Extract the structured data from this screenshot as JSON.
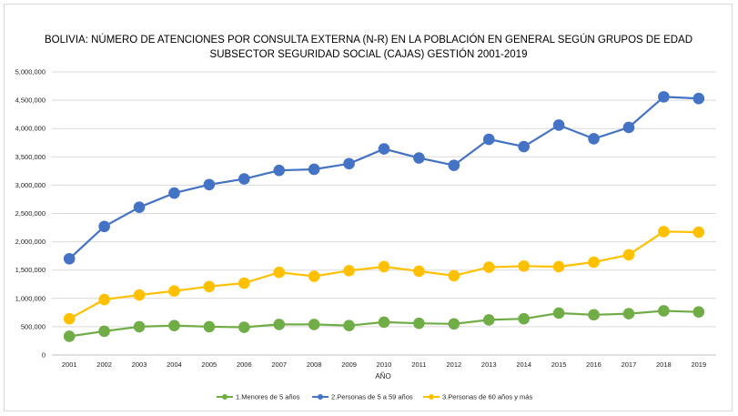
{
  "chart_data": {
    "type": "line",
    "title_line1": "BOLIVIA: NÚMERO DE ATENCIONES POR CONSULTA EXTERNA (N-R) EN LA POBLACIÓN EN GENERAL SEGÚN GRUPOS DE EDAD",
    "title_line2": "SUBSECTOR SEGURIDAD SOCIAL (CAJAS) GESTIÓN 2001-2019",
    "xlabel": "AÑO",
    "ylabel": "",
    "ylim": [
      0,
      5000000
    ],
    "yticks": [
      "0",
      "500,000",
      "1,000,000",
      "1,500,000",
      "2,000,000",
      "2,500,000",
      "3,000,000",
      "3,500,000",
      "4,000,000",
      "4,500,000",
      "5,000,000"
    ],
    "grid": true,
    "legend_position": "bottom",
    "categories": [
      "2001",
      "2002",
      "2003",
      "2004",
      "2005",
      "2006",
      "2007",
      "2008",
      "2009",
      "2010",
      "2011",
      "2012",
      "2013",
      "2014",
      "2015",
      "2016",
      "2017",
      "2018",
      "2019"
    ],
    "series": [
      {
        "name": "1.Menores de 5 años",
        "color": "#70ad47",
        "values": [
          330000,
          420000,
          500000,
          520000,
          500000,
          490000,
          540000,
          540000,
          520000,
          580000,
          560000,
          550000,
          620000,
          640000,
          740000,
          710000,
          730000,
          780000,
          760000
        ]
      },
      {
        "name": "2.Personas de 5 a 59 años",
        "color": "#4472c4",
        "values": [
          1700000,
          2270000,
          2610000,
          2860000,
          3010000,
          3110000,
          3260000,
          3280000,
          3380000,
          3640000,
          3480000,
          3350000,
          3810000,
          3680000,
          4060000,
          3820000,
          4020000,
          4560000,
          4530000
        ]
      },
      {
        "name": "3.Personas de 60 años y más",
        "color": "#ffc000",
        "values": [
          640000,
          980000,
          1060000,
          1130000,
          1210000,
          1270000,
          1460000,
          1390000,
          1490000,
          1560000,
          1480000,
          1400000,
          1550000,
          1570000,
          1560000,
          1640000,
          1770000,
          2180000,
          2170000
        ]
      }
    ]
  }
}
